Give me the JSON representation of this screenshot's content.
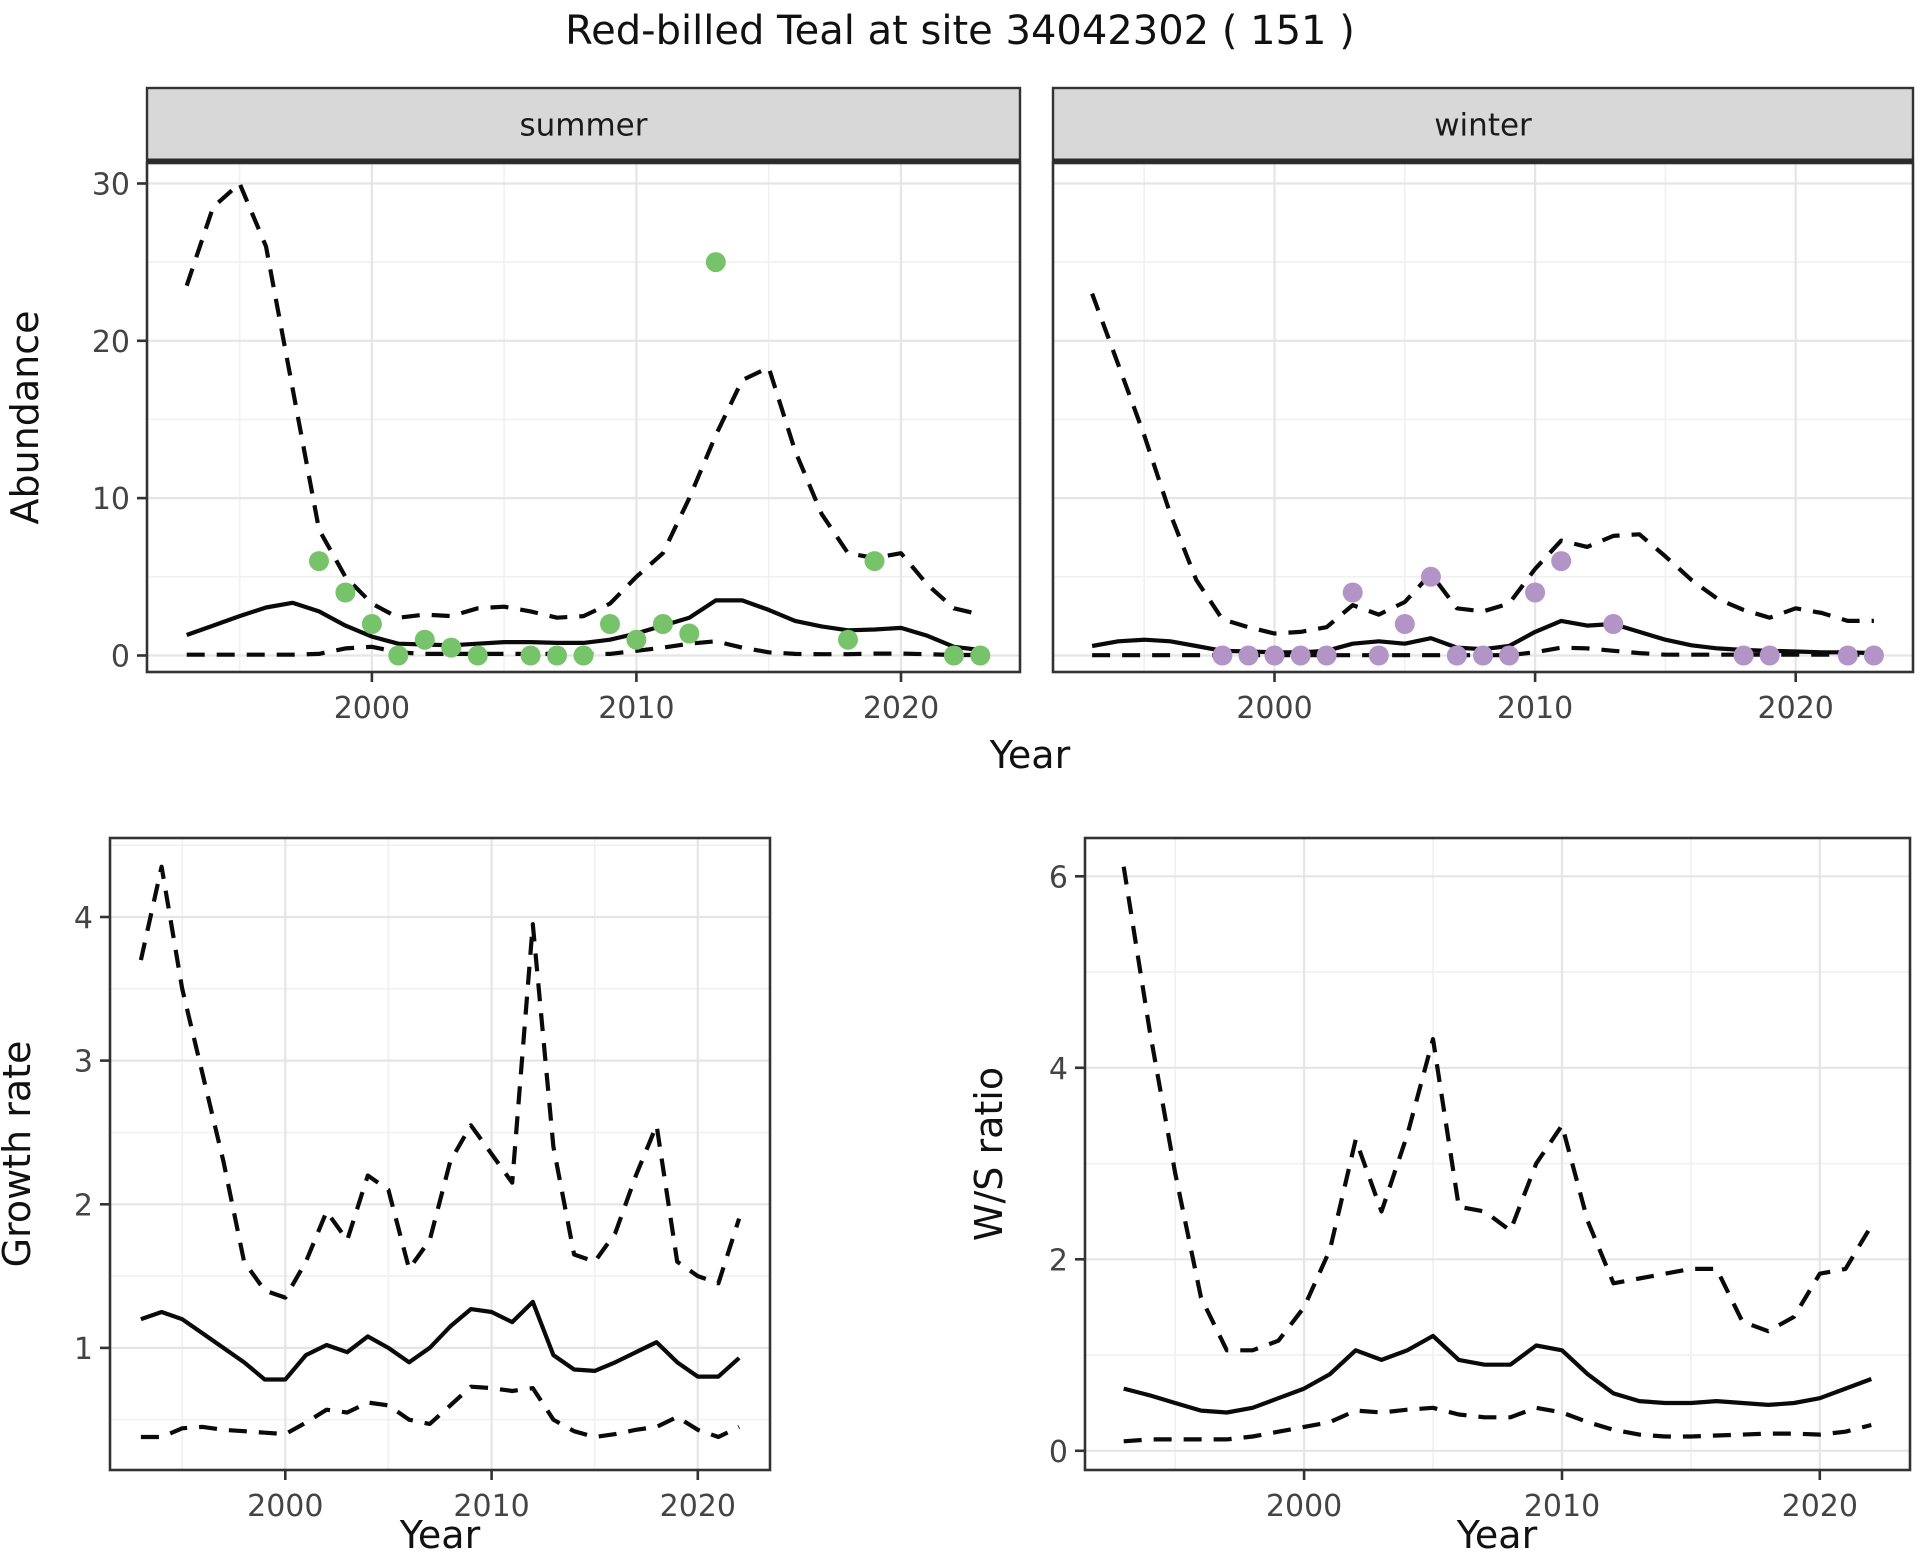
{
  "title": "Red-billed Teal at site 34042302 ( 151 )",
  "colors": {
    "summer_point": "#77c36a",
    "winter_point": "#b294c7",
    "line": "#0a0a0a",
    "strip_bg": "#d8d8d8",
    "panel_border": "#333333",
    "grid_major": "#e5e5e5",
    "grid_minor": "#f1f1f1",
    "axis_text": "#444444"
  },
  "chart_data": [
    {
      "id": "abundance-summer",
      "type": "line",
      "facet": "summer",
      "title": "",
      "ylabel": "Abundance",
      "xlabel": "Year",
      "x": [
        1993,
        1994,
        1995,
        1996,
        1997,
        1998,
        1999,
        2000,
        2001,
        2002,
        2003,
        2004,
        2005,
        2006,
        2007,
        2008,
        2009,
        2010,
        2011,
        2012,
        2013,
        2014,
        2015,
        2016,
        2017,
        2018,
        2019,
        2020,
        2021,
        2022,
        2023
      ],
      "series": [
        {
          "name": "upper-ci",
          "linetype": "dashed",
          "values": [
            23.5,
            28.5,
            30.0,
            26.0,
            17.0,
            8.0,
            5.0,
            3.3,
            2.4,
            2.6,
            2.5,
            3.0,
            3.1,
            2.8,
            2.4,
            2.5,
            3.3,
            5.0,
            6.5,
            10.0,
            14.0,
            17.5,
            18.3,
            13.0,
            9.0,
            6.5,
            6.2,
            6.5,
            4.5,
            3.0,
            2.6
          ]
        },
        {
          "name": "mean",
          "linetype": "solid",
          "values": [
            1.3,
            1.9,
            2.5,
            3.05,
            3.35,
            2.8,
            1.9,
            1.2,
            0.75,
            0.7,
            0.65,
            0.75,
            0.85,
            0.85,
            0.8,
            0.8,
            1.0,
            1.4,
            1.9,
            2.4,
            3.5,
            3.5,
            2.9,
            2.2,
            1.85,
            1.6,
            1.65,
            1.75,
            1.25,
            0.55,
            0.35
          ]
        },
        {
          "name": "lower-ci",
          "linetype": "dashed",
          "values": [
            0.05,
            0.05,
            0.05,
            0.05,
            0.05,
            0.1,
            0.45,
            0.55,
            0.2,
            0.1,
            0.1,
            0.1,
            0.1,
            0.1,
            0.1,
            0.08,
            0.1,
            0.3,
            0.5,
            0.75,
            0.9,
            0.5,
            0.2,
            0.1,
            0.08,
            0.08,
            0.12,
            0.12,
            0.08,
            0.03,
            0.03
          ]
        }
      ],
      "points": {
        "name": "observed-counts-summer",
        "color": "#77c36a",
        "data": [
          [
            1998,
            6
          ],
          [
            1999,
            4
          ],
          [
            2000,
            2
          ],
          [
            2001,
            0
          ],
          [
            2002,
            1
          ],
          [
            2003,
            0.5
          ],
          [
            2004,
            0
          ],
          [
            2006,
            0
          ],
          [
            2007,
            0
          ],
          [
            2008,
            0
          ],
          [
            2009,
            2
          ],
          [
            2010,
            1
          ],
          [
            2011,
            2
          ],
          [
            2012,
            1.4
          ],
          [
            2013,
            25
          ],
          [
            2018,
            1
          ],
          [
            2019,
            6
          ],
          [
            2022,
            0
          ],
          [
            2023,
            0
          ]
        ]
      },
      "xlim": [
        1991.5,
        2024.5
      ],
      "ylim": [
        -1.05,
        31.3
      ],
      "x_ticks": [
        2000,
        2010,
        2020
      ],
      "x_minor": [
        1995,
        2005,
        2015
      ],
      "y_ticks": [
        0,
        10,
        20,
        30
      ],
      "y_minor": [
        5,
        15,
        25
      ],
      "grid": true,
      "legend": "none"
    },
    {
      "id": "abundance-winter",
      "type": "line",
      "facet": "winter",
      "title": "",
      "ylabel": null,
      "xlabel": "Year",
      "x": [
        1993,
        1994,
        1995,
        1996,
        1997,
        1998,
        1999,
        2000,
        2001,
        2002,
        2003,
        2004,
        2005,
        2006,
        2007,
        2008,
        2009,
        2010,
        2011,
        2012,
        2013,
        2014,
        2015,
        2016,
        2017,
        2018,
        2019,
        2020,
        2021,
        2022,
        2023
      ],
      "series": [
        {
          "name": "upper-ci",
          "linetype": "dashed",
          "values": [
            23.0,
            18.5,
            14.0,
            9.0,
            4.8,
            2.3,
            1.8,
            1.4,
            1.5,
            1.8,
            3.2,
            2.6,
            3.4,
            5.2,
            3.0,
            2.8,
            3.3,
            5.5,
            7.3,
            6.9,
            7.6,
            7.7,
            6.3,
            4.8,
            3.6,
            2.9,
            2.4,
            3.0,
            2.7,
            2.2,
            2.2
          ]
        },
        {
          "name": "mean",
          "linetype": "solid",
          "values": [
            0.6,
            0.9,
            1.0,
            0.9,
            0.6,
            0.3,
            0.25,
            0.2,
            0.2,
            0.3,
            0.75,
            0.9,
            0.75,
            1.1,
            0.5,
            0.4,
            0.6,
            1.5,
            2.2,
            1.9,
            2.0,
            1.5,
            1.0,
            0.65,
            0.45,
            0.35,
            0.3,
            0.25,
            0.2,
            0.2,
            0.15
          ]
        },
        {
          "name": "lower-ci",
          "linetype": "dashed",
          "values": [
            0.02,
            0.02,
            0.02,
            0.02,
            0.02,
            0.02,
            0.02,
            0.02,
            0.02,
            0.02,
            0.02,
            0.02,
            0.02,
            0.02,
            0.02,
            0.02,
            0.02,
            0.2,
            0.5,
            0.45,
            0.3,
            0.15,
            0.05,
            0.05,
            0.05,
            0.05,
            0.05,
            0.05,
            0.05,
            0.05,
            0.05
          ]
        }
      ],
      "points": {
        "name": "observed-counts-winter",
        "color": "#b294c7",
        "data": [
          [
            1998,
            0
          ],
          [
            1999,
            0
          ],
          [
            2000,
            0
          ],
          [
            2001,
            0
          ],
          [
            2002,
            0
          ],
          [
            2003,
            4
          ],
          [
            2004,
            0
          ],
          [
            2005,
            2
          ],
          [
            2006,
            5
          ],
          [
            2007,
            0
          ],
          [
            2008,
            0
          ],
          [
            2009,
            0
          ],
          [
            2010,
            4
          ],
          [
            2011,
            6
          ],
          [
            2013,
            2
          ],
          [
            2018,
            0
          ],
          [
            2019,
            0
          ],
          [
            2022,
            0
          ],
          [
            2023,
            0
          ]
        ]
      },
      "xlim": [
        1991.5,
        2024.5
      ],
      "ylim": [
        -1.05,
        31.3
      ],
      "x_ticks": [
        2000,
        2010,
        2020
      ],
      "x_minor": [
        1995,
        2005,
        2015
      ],
      "y_ticks": [
        0,
        10,
        20,
        30
      ],
      "y_minor": [
        5,
        15,
        25
      ],
      "grid": true,
      "legend": "none"
    },
    {
      "id": "growth-rate",
      "type": "line",
      "facet": null,
      "title": "",
      "ylabel": "Growth rate",
      "xlabel": "Year",
      "x": [
        1993,
        1994,
        1995,
        1996,
        1997,
        1998,
        1999,
        2000,
        2001,
        2002,
        2003,
        2004,
        2005,
        2006,
        2007,
        2008,
        2009,
        2010,
        2011,
        2012,
        2013,
        2014,
        2015,
        2016,
        2017,
        2018,
        2019,
        2020,
        2021,
        2022
      ],
      "series": [
        {
          "name": "upper-ci",
          "linetype": "dashed",
          "values": [
            3.7,
            4.35,
            3.5,
            2.9,
            2.3,
            1.6,
            1.4,
            1.35,
            1.6,
            1.95,
            1.75,
            2.2,
            2.1,
            1.55,
            1.75,
            2.3,
            2.55,
            2.35,
            2.15,
            3.95,
            2.4,
            1.65,
            1.6,
            1.8,
            2.2,
            2.55,
            1.6,
            1.5,
            1.45,
            1.9
          ]
        },
        {
          "name": "mean",
          "linetype": "solid",
          "values": [
            1.2,
            1.25,
            1.2,
            1.1,
            1.0,
            0.9,
            0.78,
            0.78,
            0.95,
            1.02,
            0.97,
            1.08,
            1.0,
            0.9,
            1.0,
            1.15,
            1.27,
            1.25,
            1.18,
            1.32,
            0.95,
            0.85,
            0.84,
            0.9,
            0.97,
            1.04,
            0.9,
            0.8,
            0.8,
            0.93
          ]
        },
        {
          "name": "lower-ci",
          "linetype": "dashed",
          "values": [
            0.38,
            0.38,
            0.44,
            0.45,
            0.43,
            0.42,
            0.41,
            0.4,
            0.48,
            0.57,
            0.55,
            0.62,
            0.6,
            0.5,
            0.47,
            0.6,
            0.73,
            0.72,
            0.7,
            0.72,
            0.5,
            0.42,
            0.38,
            0.4,
            0.43,
            0.45,
            0.52,
            0.43,
            0.38,
            0.45
          ]
        }
      ],
      "points": null,
      "xlim": [
        1991.5,
        2023.5
      ],
      "ylim": [
        0.15,
        4.55
      ],
      "x_ticks": [
        2000,
        2010,
        2020
      ],
      "x_minor": [
        1995,
        2005,
        2015
      ],
      "y_ticks": [
        1,
        2,
        3,
        4
      ],
      "y_minor": [
        0.5,
        1.5,
        2.5,
        3.5,
        4.5
      ],
      "grid": true,
      "legend": "none"
    },
    {
      "id": "ws-ratio",
      "type": "line",
      "facet": null,
      "title": "",
      "ylabel": "W/S ratio",
      "xlabel": "Year",
      "x": [
        1993,
        1994,
        1995,
        1996,
        1997,
        1998,
        1999,
        2000,
        2001,
        2002,
        2003,
        2004,
        2005,
        2006,
        2007,
        2008,
        2009,
        2010,
        2011,
        2012,
        2013,
        2014,
        2015,
        2016,
        2017,
        2018,
        2019,
        2020,
        2021,
        2022
      ],
      "series": [
        {
          "name": "upper-ci",
          "linetype": "dashed",
          "values": [
            6.1,
            4.4,
            2.9,
            1.6,
            1.05,
            1.05,
            1.15,
            1.5,
            2.1,
            3.25,
            2.5,
            3.3,
            4.3,
            2.55,
            2.5,
            2.3,
            3.0,
            3.4,
            2.4,
            1.75,
            1.8,
            1.85,
            1.9,
            1.9,
            1.35,
            1.25,
            1.4,
            1.85,
            1.9,
            2.35
          ]
        },
        {
          "name": "mean",
          "linetype": "solid",
          "values": [
            0.65,
            0.58,
            0.5,
            0.42,
            0.4,
            0.45,
            0.55,
            0.65,
            0.8,
            1.05,
            0.95,
            1.05,
            1.2,
            0.95,
            0.9,
            0.9,
            1.1,
            1.05,
            0.8,
            0.6,
            0.52,
            0.5,
            0.5,
            0.52,
            0.5,
            0.48,
            0.5,
            0.55,
            0.65,
            0.75
          ]
        },
        {
          "name": "lower-ci",
          "linetype": "dashed",
          "values": [
            0.1,
            0.12,
            0.12,
            0.12,
            0.12,
            0.15,
            0.2,
            0.25,
            0.3,
            0.42,
            0.4,
            0.43,
            0.45,
            0.38,
            0.35,
            0.35,
            0.45,
            0.4,
            0.3,
            0.22,
            0.17,
            0.15,
            0.15,
            0.16,
            0.17,
            0.18,
            0.18,
            0.17,
            0.2,
            0.27
          ]
        }
      ],
      "points": null,
      "xlim": [
        1991.5,
        2023.5
      ],
      "ylim": [
        -0.2,
        6.4
      ],
      "x_ticks": [
        2000,
        2010,
        2020
      ],
      "x_minor": [
        1995,
        2005,
        2015
      ],
      "y_ticks": [
        0,
        2,
        4,
        6
      ],
      "y_minor": [
        1,
        3,
        5
      ],
      "grid": true,
      "legend": "none"
    }
  ]
}
